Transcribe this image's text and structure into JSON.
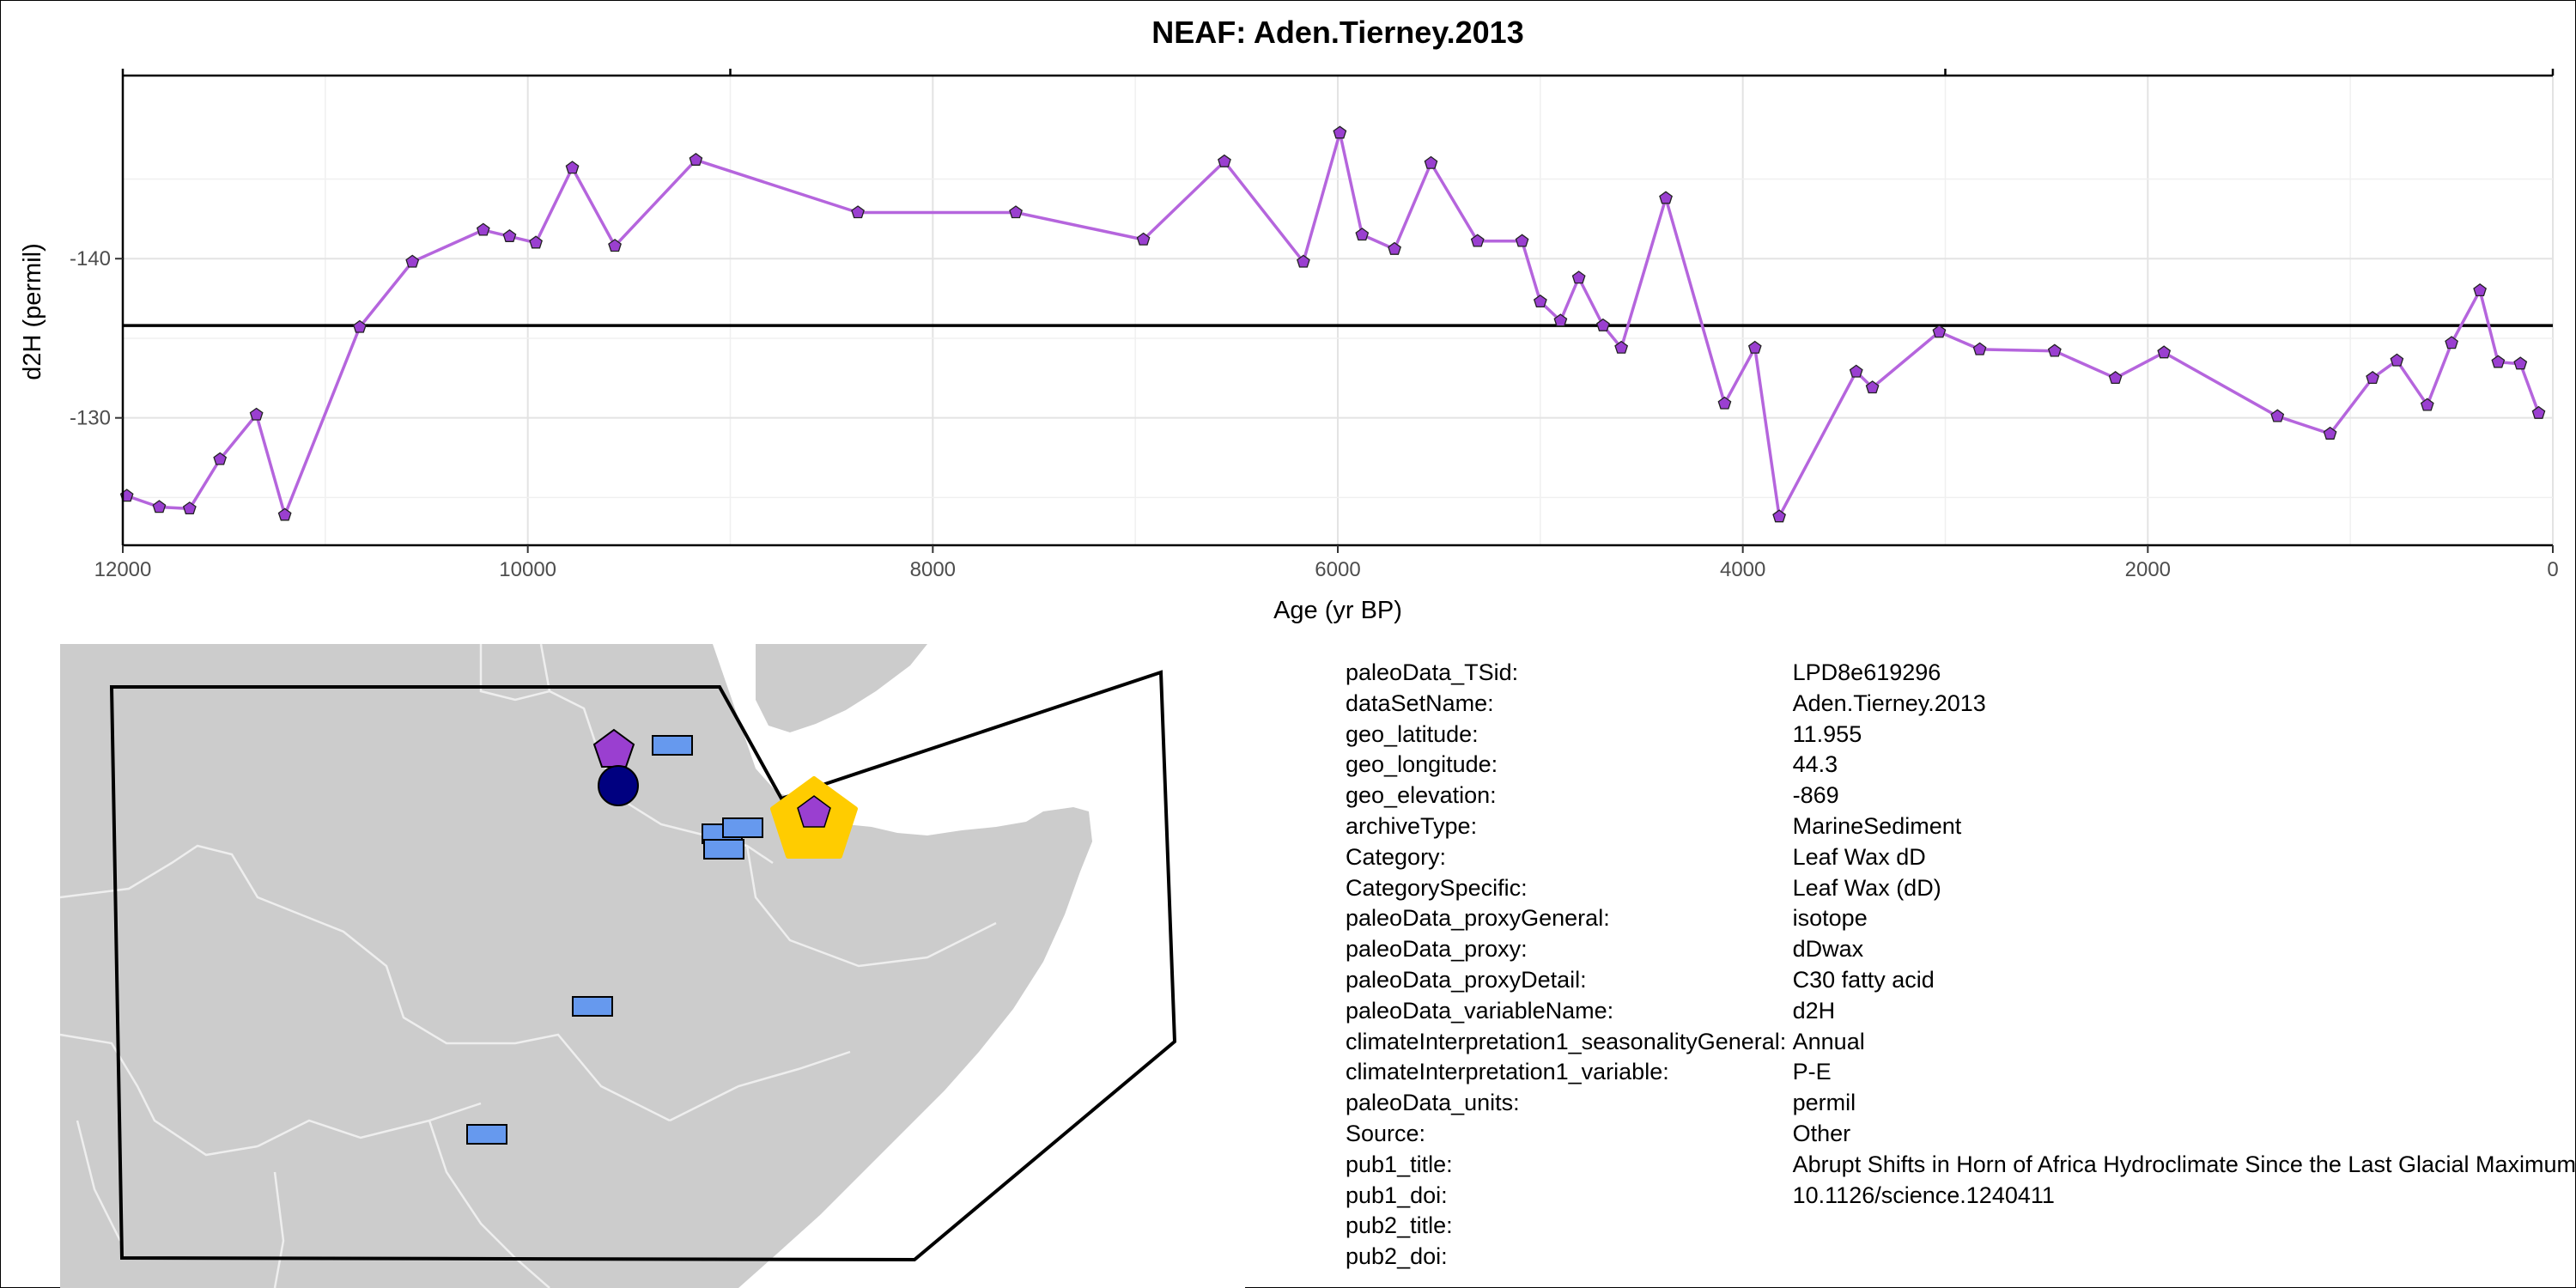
{
  "chart_data": {
    "type": "line",
    "title": "NEAF: Aden.Tierney.2013",
    "xlabel": "Age (yr BP)",
    "ylabel": "d2H (permil)",
    "x_reversed": true,
    "xlim": [
      12000,
      0
    ],
    "ylim": [
      -122,
      -151.5
    ],
    "x_ticks": [
      12000,
      10000,
      8000,
      6000,
      4000,
      2000,
      0
    ],
    "y_ticks": [
      -140,
      -130
    ],
    "y_tick_labels": [
      "-140",
      "-130"
    ],
    "reference_line_y": -135.8,
    "grid": true,
    "series_color": "#b565dd",
    "marker_color": "#9a3fd0",
    "marker": "pentagon",
    "x": [
      11980,
      11820,
      11670,
      11520,
      11340,
      11200,
      10830,
      10570,
      10220,
      10090,
      9960,
      9780,
      9570,
      9170,
      8370,
      7590,
      6960,
      6560,
      6170,
      5990,
      5880,
      5720,
      5540,
      5310,
      5090,
      5000,
      4900,
      4810,
      4690,
      4600,
      4380,
      4090,
      3940,
      3820,
      3440,
      3360,
      3030,
      2830,
      2460,
      2160,
      1920,
      1360,
      1100,
      890,
      770,
      620,
      500,
      360,
      270,
      160,
      70
    ],
    "y": [
      -125.1,
      -124.4,
      -124.3,
      -127.4,
      -130.2,
      -123.9,
      -135.7,
      -139.8,
      -141.8,
      -141.4,
      -141.0,
      -145.7,
      -140.8,
      -146.2,
      -142.9,
      -142.9,
      -141.2,
      -146.1,
      -139.8,
      -147.9,
      -141.5,
      -140.6,
      -146.0,
      -141.1,
      -141.1,
      -137.3,
      -136.1,
      -138.8,
      -135.8,
      -134.4,
      -143.8,
      -130.9,
      -134.4,
      -123.8,
      -132.9,
      -131.9,
      -135.4,
      -134.3,
      -134.2,
      -132.5,
      -134.1,
      -130.1,
      -129.0,
      -132.5,
      -133.6,
      -130.8,
      -134.7,
      -138.0,
      -133.5,
      -133.4,
      -130.3
    ]
  },
  "metadata": [
    {
      "key": "paleoData_TSid:",
      "value": "LPD8e619296"
    },
    {
      "key": "dataSetName:",
      "value": "Aden.Tierney.2013"
    },
    {
      "key": "geo_latitude:",
      "value": "11.955"
    },
    {
      "key": "geo_longitude:",
      "value": "44.3"
    },
    {
      "key": "geo_elevation:",
      "value": "-869"
    },
    {
      "key": "archiveType:",
      "value": "MarineSediment"
    },
    {
      "key": "Category:",
      "value": "Leaf Wax dD"
    },
    {
      "key": "CategorySpecific:",
      "value": "Leaf Wax (dD)"
    },
    {
      "key": "paleoData_proxyGeneral:",
      "value": "isotope"
    },
    {
      "key": "paleoData_proxy:",
      "value": "dDwax"
    },
    {
      "key": "paleoData_proxyDetail:",
      "value": "C30 fatty acid"
    },
    {
      "key": "paleoData_variableName:",
      "value": "d2H"
    },
    {
      "key": "climateInterpretation1_seasonalityGeneral:",
      "value": "Annual"
    },
    {
      "key": "climateInterpretation1_variable:",
      "value": "P-E"
    },
    {
      "key": "paleoData_units:",
      "value": "permil"
    },
    {
      "key": "Source:",
      "value": "Other"
    },
    {
      "key": "pub1_title:",
      "value": "Abrupt Shifts in Horn of Africa Hydroclimate Since the Last Glacial Maximum"
    },
    {
      "key": "pub1_doi:",
      "value": "10.1126/science.1240411"
    },
    {
      "key": "pub2_title:",
      "value": ""
    },
    {
      "key": "pub2_doi:",
      "value": ""
    }
  ],
  "map": {
    "land_color": "#cccccc",
    "border_color": "#eeeeee",
    "site_marker_color": "#ffcc00",
    "site_inner_color": "#9a3fd0",
    "other_site_color": "#6699ee",
    "circle_site_color": "#000080"
  }
}
